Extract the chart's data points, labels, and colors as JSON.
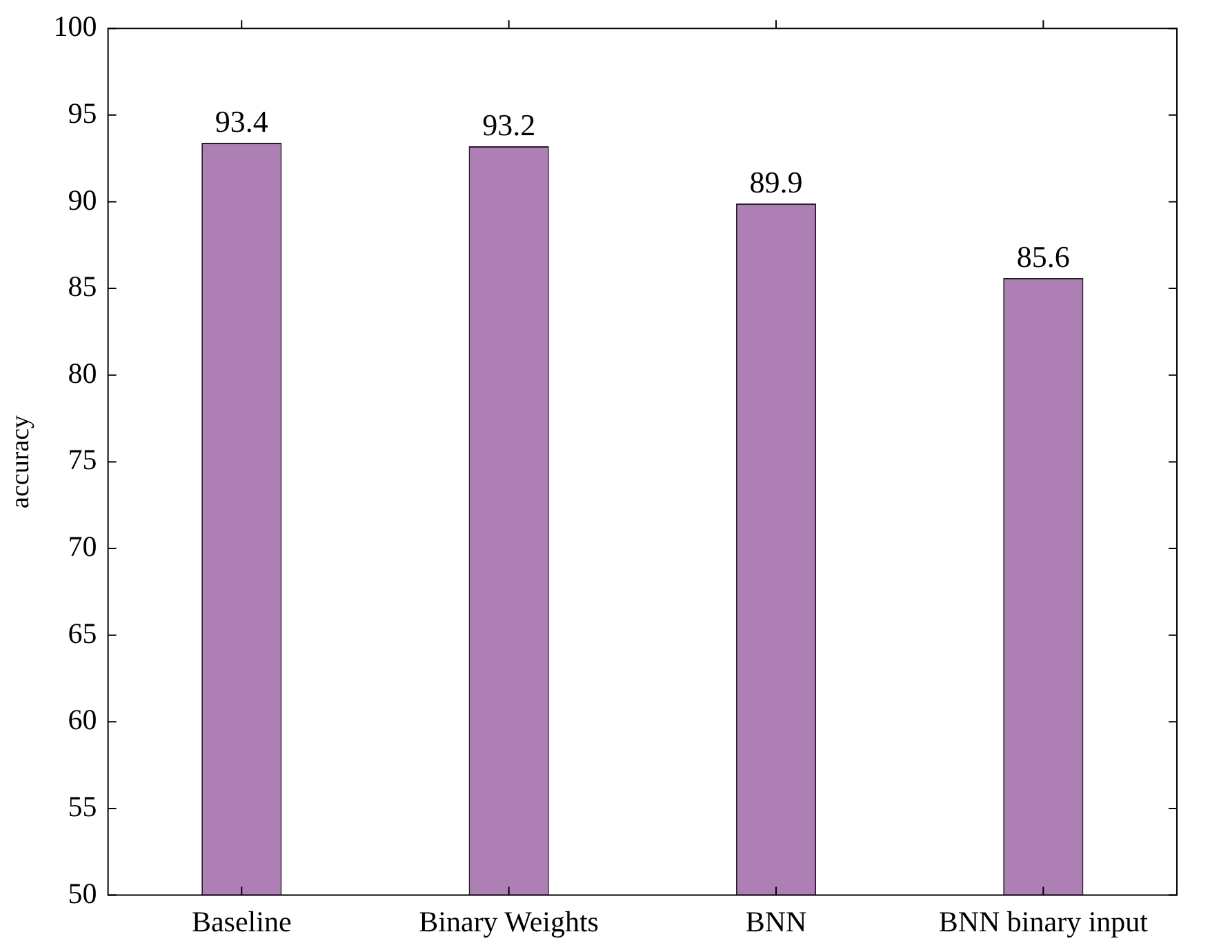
{
  "chart_data": {
    "type": "bar",
    "ylabel": "accuracy",
    "categories": [
      "Baseline",
      "Binary Weights",
      "BNN",
      "BNN binary input"
    ],
    "values": [
      93.4,
      93.2,
      89.9,
      85.6
    ],
    "color": "#ad7fb4",
    "ylim": [
      50,
      100
    ],
    "yticks": [
      50,
      55,
      60,
      65,
      70,
      75,
      80,
      85,
      90,
      95,
      100
    ],
    "grid": false,
    "legend": false,
    "data_labels": true
  }
}
